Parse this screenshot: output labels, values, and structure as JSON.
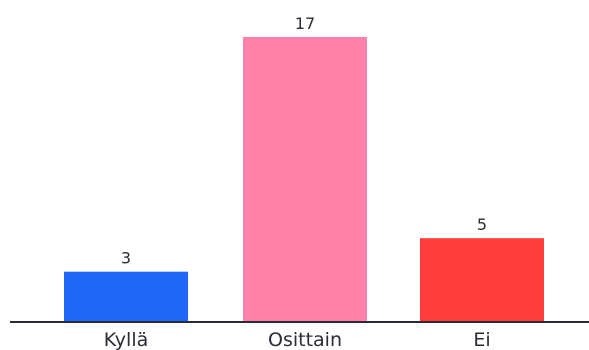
{
  "chart_data": {
    "type": "bar",
    "categories": [
      "Kyllä",
      "Osittain",
      "Ei"
    ],
    "values": [
      3,
      17,
      5
    ],
    "colors": [
      "#1f67f5",
      "#ff80a8",
      "#ff3d3d"
    ],
    "axis_color": "#2b2b35",
    "title": "",
    "xlabel": "",
    "ylabel": "",
    "ylim": [
      0,
      17
    ],
    "grid": false,
    "legend": "none"
  }
}
